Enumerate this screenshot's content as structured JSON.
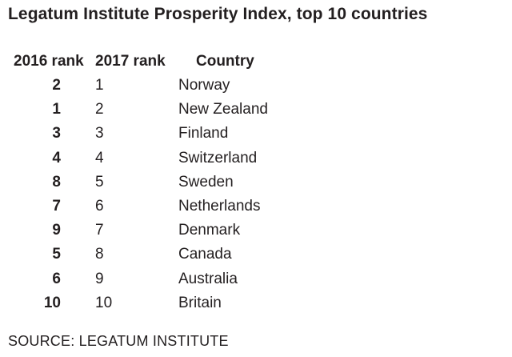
{
  "chart_data": {
    "type": "table",
    "title": "Legatum Institute Prosperity Index, top 10 countries",
    "columns": [
      "2016 rank",
      "2017 rank",
      "Country"
    ],
    "rows": [
      {
        "rank_2016": "2",
        "rank_2017": "1",
        "country": "Norway"
      },
      {
        "rank_2016": "1",
        "rank_2017": "2",
        "country": "New Zealand"
      },
      {
        "rank_2016": "3",
        "rank_2017": "3",
        "country": "Finland"
      },
      {
        "rank_2016": "4",
        "rank_2017": "4",
        "country": "Switzerland"
      },
      {
        "rank_2016": "8",
        "rank_2017": "5",
        "country": "Sweden"
      },
      {
        "rank_2016": "7",
        "rank_2017": "6",
        "country": "Netherlands"
      },
      {
        "rank_2016": "9",
        "rank_2017": "7",
        "country": "Denmark"
      },
      {
        "rank_2016": "5",
        "rank_2017": "8",
        "country": "Canada"
      },
      {
        "rank_2016": "6",
        "rank_2017": "9",
        "country": "Australia"
      },
      {
        "rank_2016": "10",
        "rank_2017": "10",
        "country": "Britain"
      }
    ],
    "source": "SOURCE: LEGATUM INSTITUTE"
  }
}
